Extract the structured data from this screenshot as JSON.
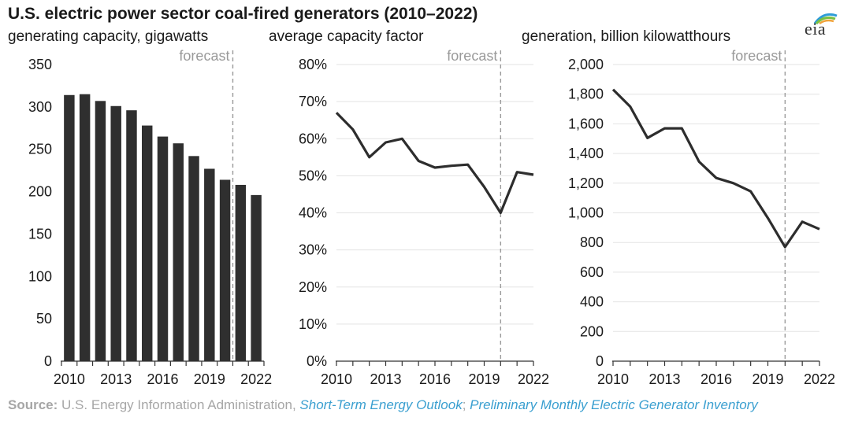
{
  "title": "U.S. electric power sector coal-fired generators (2010–2022)",
  "logo_text": "eia",
  "forecast_label": "forecast",
  "source": {
    "label": "Source:",
    "text": "U.S. Energy Information Administration,",
    "link1": "Short-Term Energy Outlook",
    "sep": ";",
    "link2": "Preliminary Monthly Electric Generator Inventory"
  },
  "chart_data": [
    {
      "type": "bar",
      "subtitle": "generating capacity, gigawatts",
      "categories": [
        2010,
        2011,
        2012,
        2013,
        2014,
        2015,
        2016,
        2017,
        2018,
        2019,
        2020,
        2021,
        2022
      ],
      "x_tick_labels": [
        "2010",
        "2013",
        "2016",
        "2019",
        "2022"
      ],
      "values": [
        314,
        315,
        307,
        301,
        296,
        278,
        265,
        257,
        242,
        227,
        214,
        208,
        196
      ],
      "ylim": [
        0,
        350
      ],
      "y_ticks": [
        0,
        50,
        100,
        150,
        200,
        250,
        300,
        350
      ],
      "y_tick_labels": [
        "0",
        "50",
        "100",
        "150",
        "200",
        "250",
        "300",
        "350"
      ],
      "forecast_after": 2020.5
    },
    {
      "type": "line",
      "subtitle": "average capacity factor",
      "x": [
        2010,
        2011,
        2012,
        2013,
        2014,
        2015,
        2016,
        2017,
        2018,
        2019,
        2020,
        2021,
        2022
      ],
      "x_tick_labels": [
        "2010",
        "2013",
        "2016",
        "2019",
        "2022"
      ],
      "values": [
        67,
        62.5,
        55,
        59,
        60,
        54,
        52.2,
        52.7,
        53,
        47,
        40,
        51,
        50.3
      ],
      "ylim": [
        0,
        80
      ],
      "y_ticks": [
        0,
        10,
        20,
        30,
        40,
        50,
        60,
        70,
        80
      ],
      "y_tick_labels": [
        "0%",
        "10%",
        "20%",
        "30%",
        "40%",
        "50%",
        "60%",
        "70%",
        "80%"
      ],
      "forecast_at": 2020
    },
    {
      "type": "line",
      "subtitle": "generation, billion kilowatthours",
      "x": [
        2010,
        2011,
        2012,
        2013,
        2014,
        2015,
        2016,
        2017,
        2018,
        2019,
        2020,
        2021,
        2022
      ],
      "x_tick_labels": [
        "2010",
        "2013",
        "2016",
        "2019",
        "2022"
      ],
      "values": [
        1832,
        1716,
        1505,
        1570,
        1570,
        1345,
        1235,
        1200,
        1145,
        965,
        770,
        940,
        890
      ],
      "ylim": [
        0,
        2000
      ],
      "y_ticks": [
        0,
        200,
        400,
        600,
        800,
        1000,
        1200,
        1400,
        1600,
        1800,
        2000
      ],
      "y_tick_labels": [
        "0",
        "200",
        "400",
        "600",
        "800",
        "1,000",
        "1,200",
        "1,400",
        "1,600",
        "1,800",
        "2,000"
      ],
      "forecast_at": 2020
    }
  ]
}
